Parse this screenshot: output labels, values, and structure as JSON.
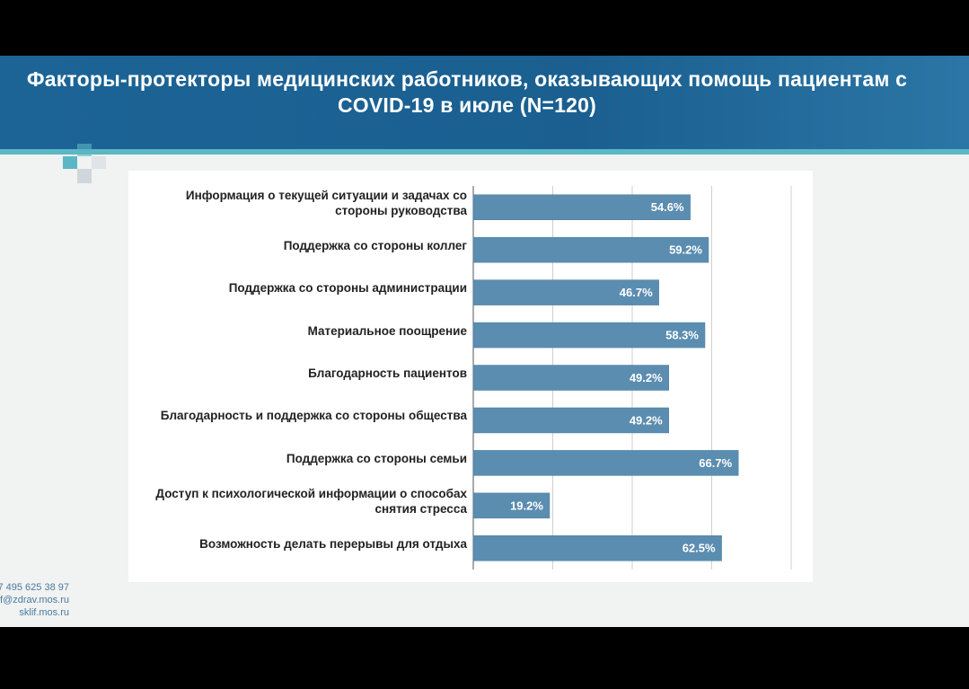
{
  "chart_data": {
    "type": "bar",
    "orientation": "horizontal",
    "title": "Факторы-протекторы медицинских работников, оказывающих помощь пациентам с COVID-19 в июле (N=120)",
    "categories": [
      "Информация о текущей ситуации и задачах со стороны руководства",
      "Поддержка со стороны коллег",
      "Поддержка со стороны администрации",
      "Материальное поощрение",
      "Благодарность пациентов",
      "Благодарность и поддержка со стороны общества",
      "Поддержка со стороны семьи",
      "Доступ к психологической информации о способах снятия стресса",
      "Возможность делать перерывы для отдыха"
    ],
    "values": [
      54.6,
      59.2,
      46.7,
      58.3,
      49.2,
      49.2,
      66.7,
      19.2,
      62.5
    ],
    "value_labels": [
      "54.6%",
      "59.2%",
      "46.7%",
      "58.3%",
      "49.2%",
      "49.2%",
      "66.7%",
      "19.2%",
      "62.5%"
    ],
    "color": "#5b8db0",
    "xlim": [
      0,
      80
    ],
    "xticks": [
      0,
      20,
      40,
      60,
      80
    ],
    "grid": true
  },
  "contacts": [
    "7 495 625 38 97",
    "f@zdrav.mos.ru",
    "sklif.mos.ru"
  ]
}
